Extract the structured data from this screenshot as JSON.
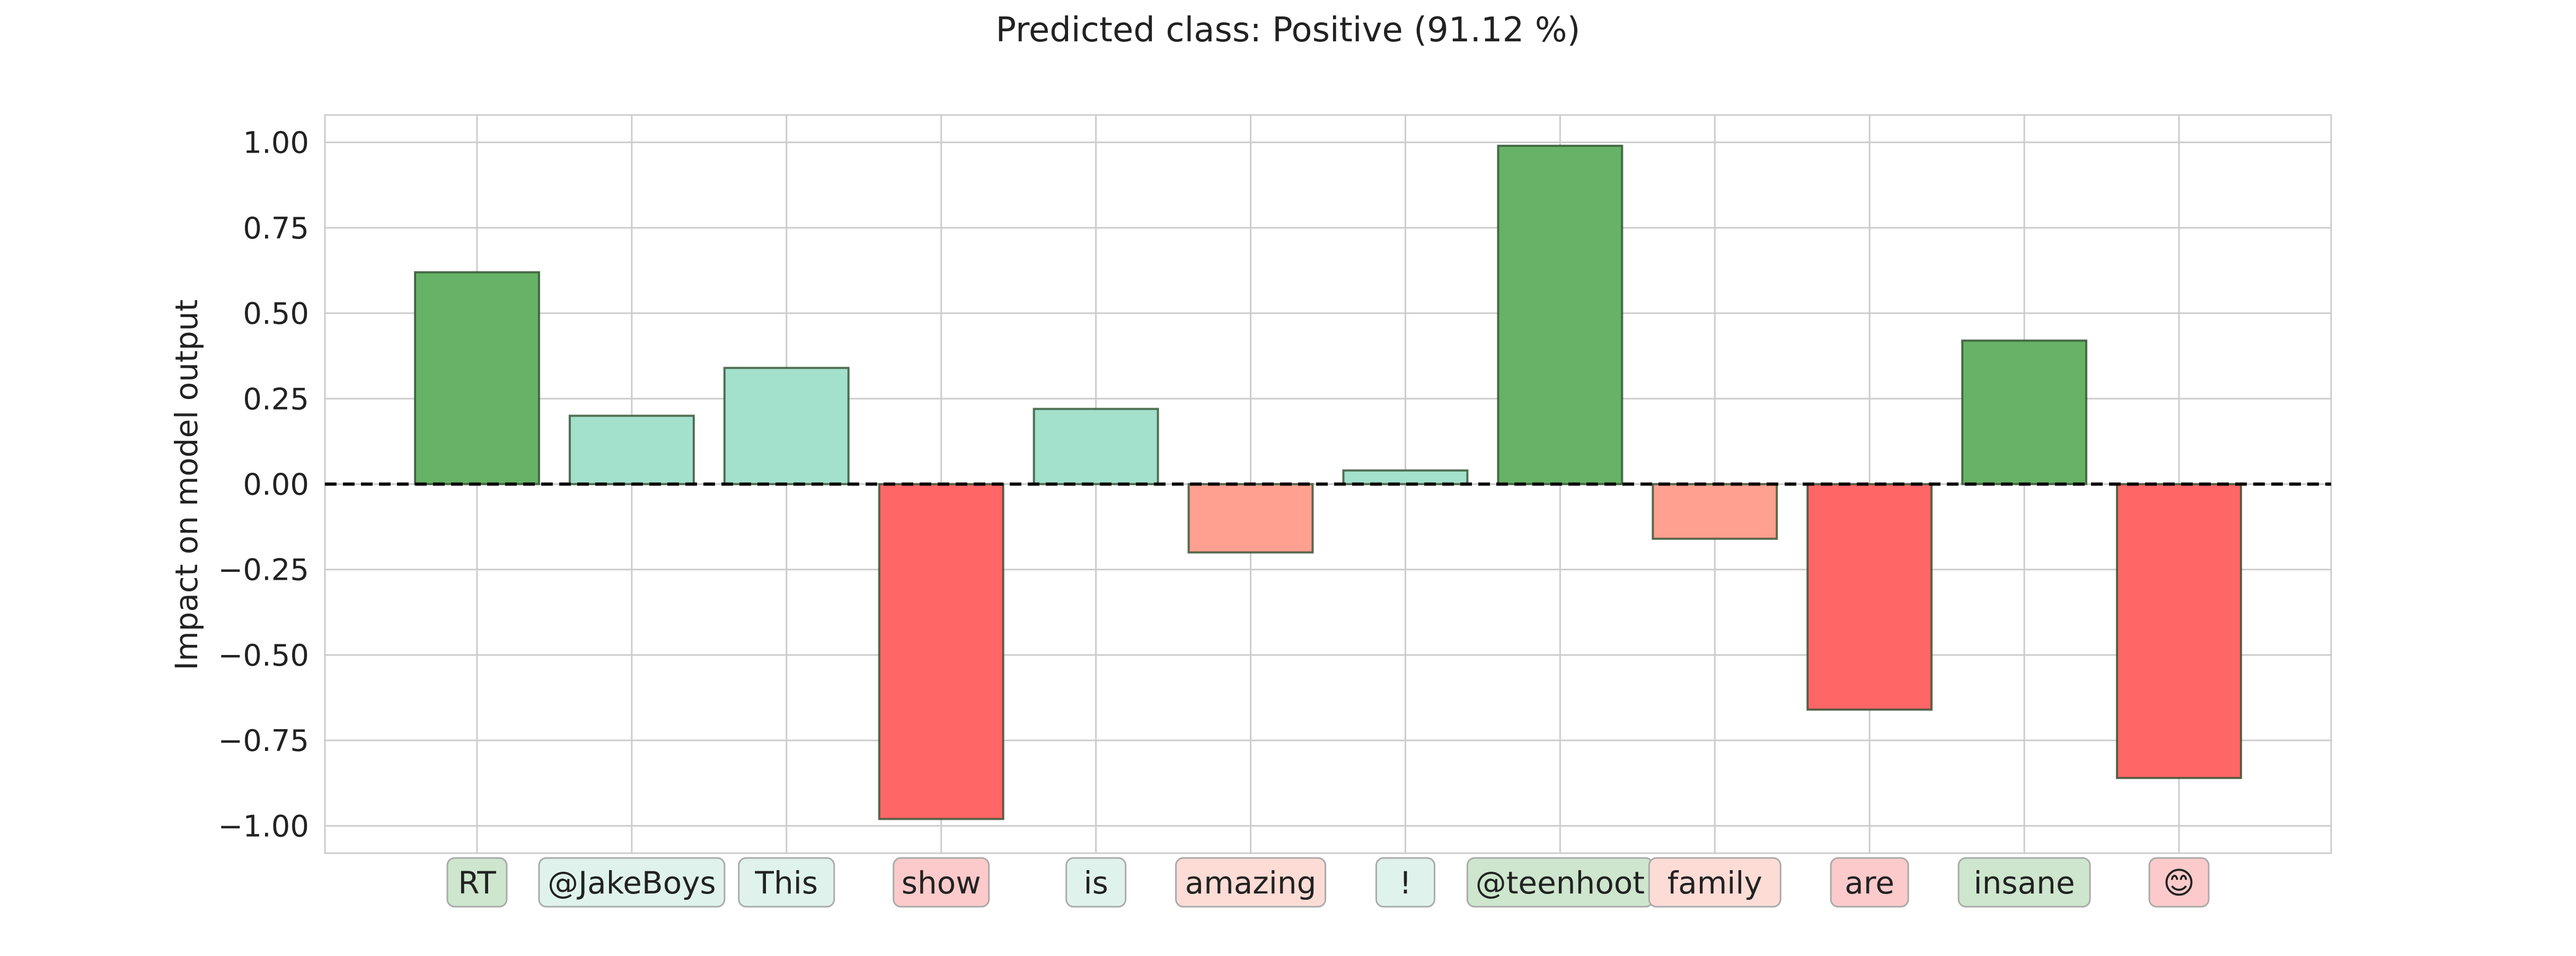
{
  "chart_data": {
    "type": "bar",
    "title": "Predicted class: Positive (91.12 %)",
    "xlabel": "",
    "ylabel": "Impact on model output",
    "ylim": [
      -1.08,
      1.08
    ],
    "yticks": [
      1.0,
      0.75,
      0.5,
      0.25,
      0.0,
      -0.25,
      -0.5,
      -0.75,
      -1.0
    ],
    "ytick_labels": [
      "1.00",
      "0.75",
      "0.50",
      "0.25",
      "0.00",
      "−0.25",
      "−0.50",
      "−0.75",
      "−1.00"
    ],
    "categories": [
      "RT",
      "@JakeBoys",
      "This",
      "show",
      "is",
      "amazing",
      "!",
      "@teenhoot",
      "family",
      "are",
      "insane",
      "😊"
    ],
    "values": [
      0.62,
      0.2,
      0.34,
      -0.98,
      0.22,
      -0.2,
      0.04,
      0.99,
      -0.16,
      -0.66,
      0.42,
      -0.86
    ],
    "bar_colors": [
      "#66b266",
      "#a3e1cd",
      "#a3e1cd",
      "#ff6666",
      "#a3e1cd",
      "#ffa090",
      "#a3e1cd",
      "#66b266",
      "#ffa090",
      "#ff6666",
      "#66b266",
      "#ff6666"
    ],
    "label_bg_colors": [
      "#cde6cd",
      "#dff3ec",
      "#dff3ec",
      "#fccaca",
      "#dff3ec",
      "#fddcd6",
      "#dff3ec",
      "#cde6cd",
      "#fddcd6",
      "#fccaca",
      "#cde6cd",
      "#fccaca"
    ],
    "zero_line": "dashed black",
    "grid": true,
    "legend": "none"
  }
}
